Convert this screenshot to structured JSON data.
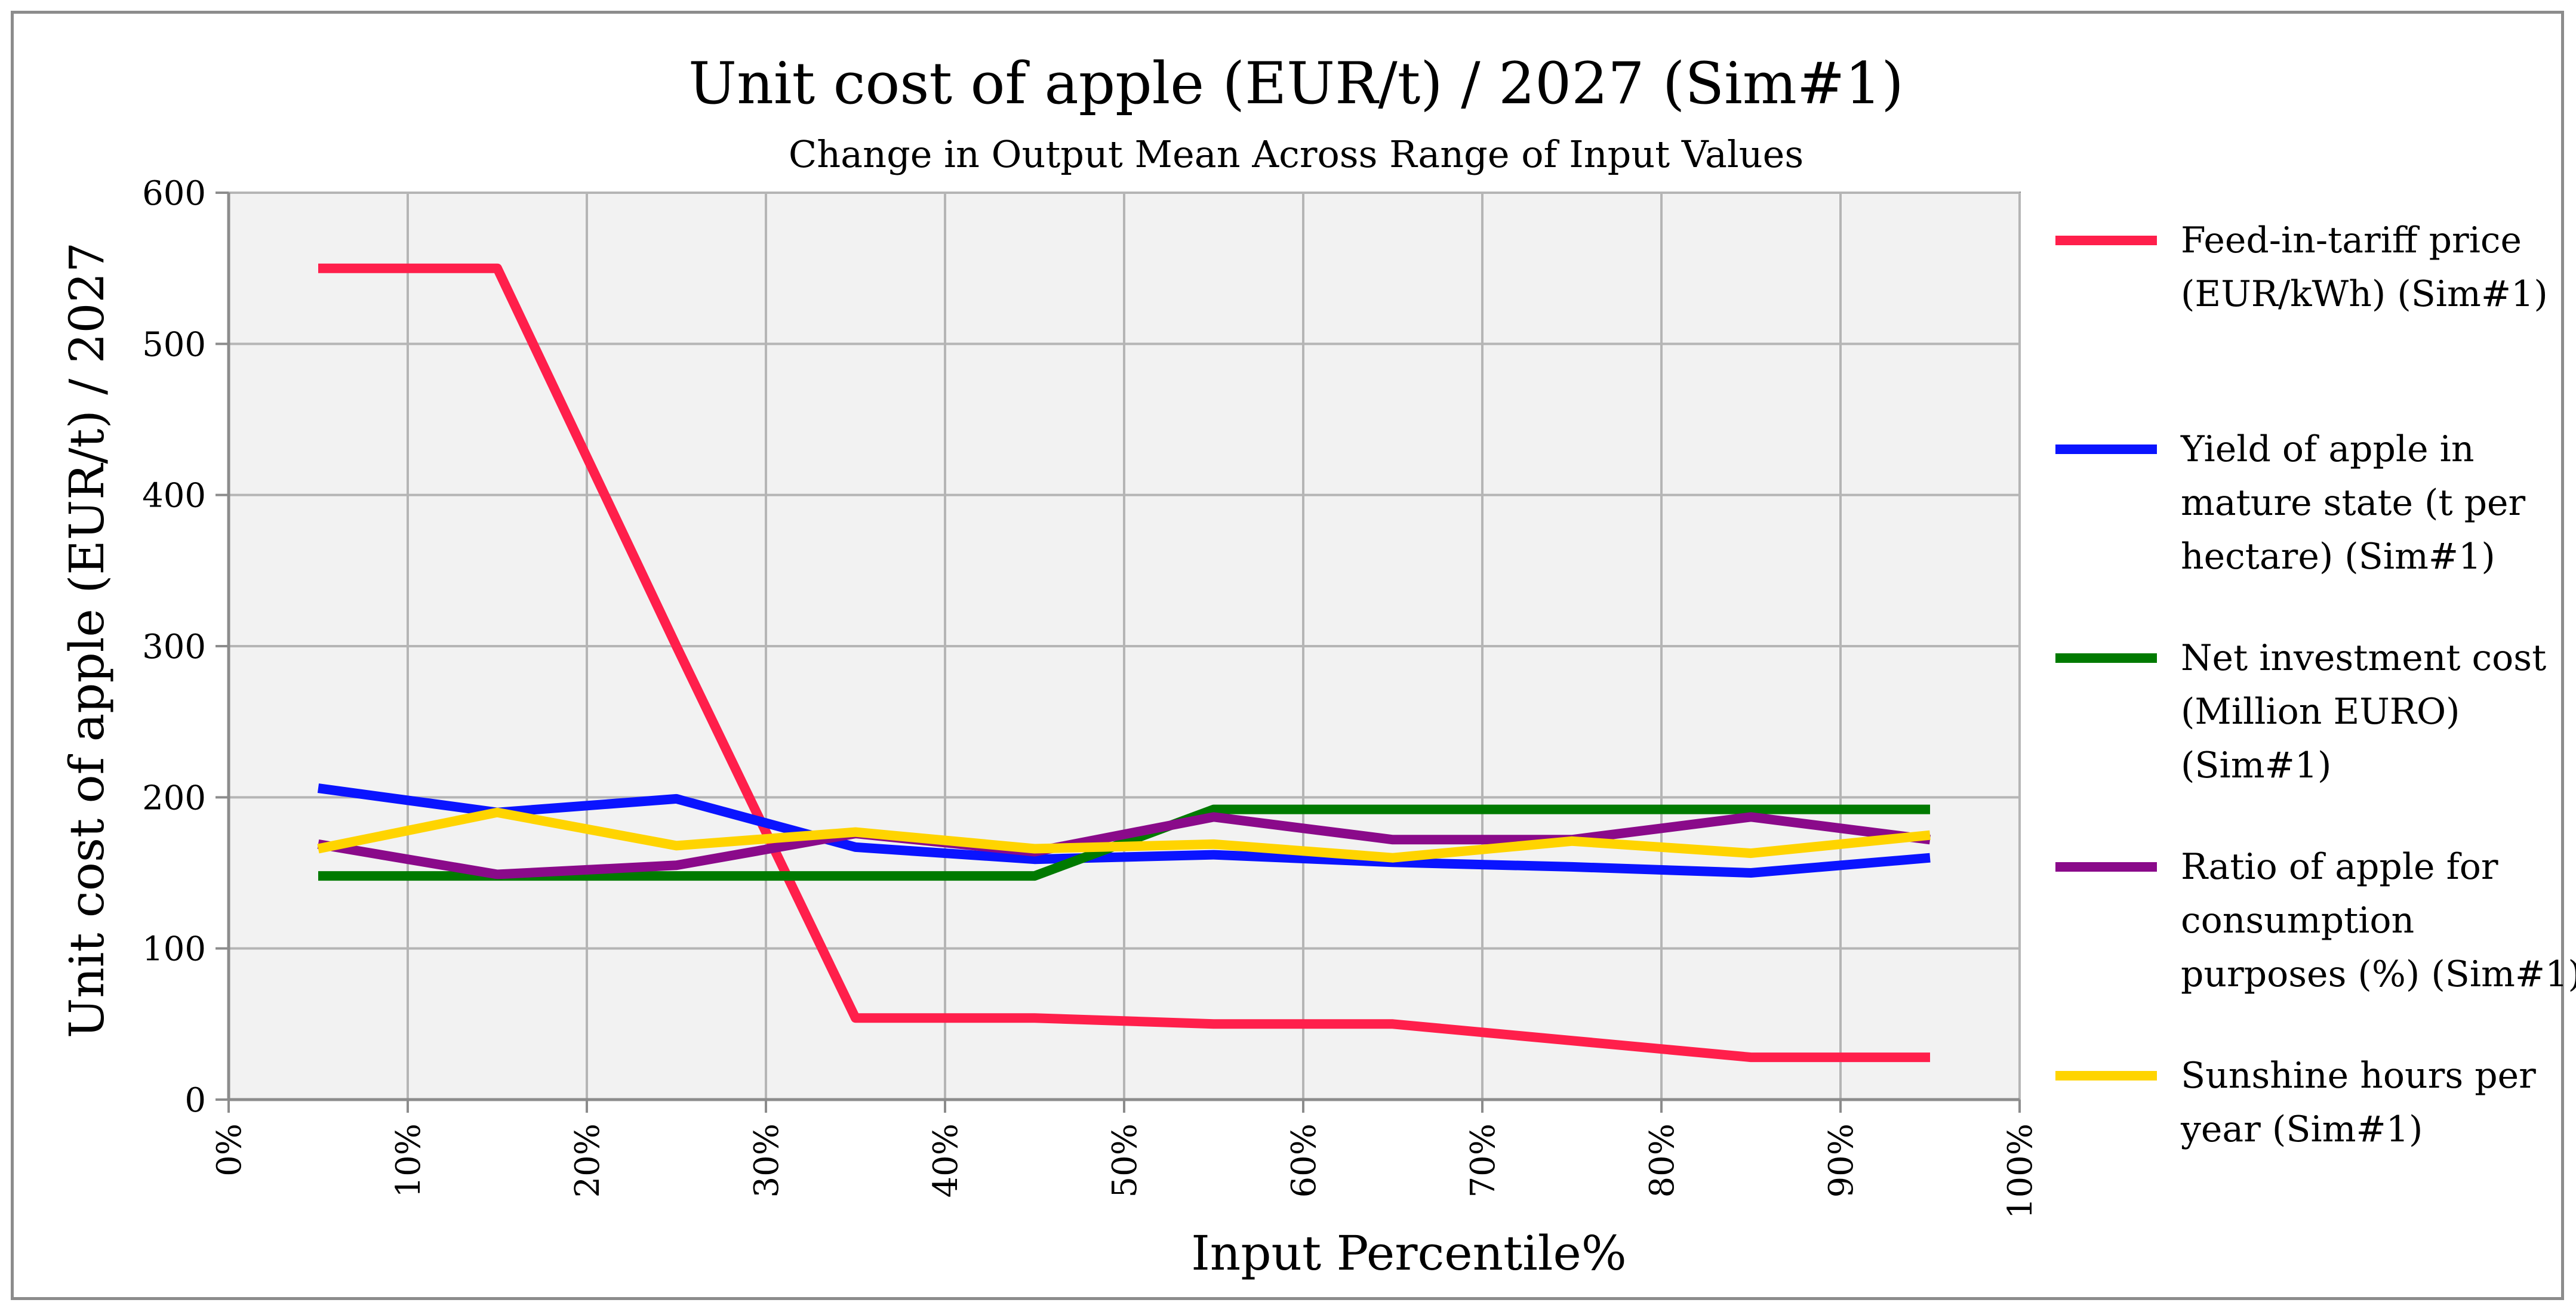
{
  "chart_data": {
    "type": "line",
    "title": "Unit cost of apple (EUR/t) / 2027 (Sim#1)",
    "subtitle": "Change in Output Mean Across Range of Input Values",
    "xlabel": "Input Percentile%",
    "ylabel": "Unit cost of apple (EUR/t) / 2027",
    "xlim": [
      0,
      100
    ],
    "ylim": [
      0,
      600
    ],
    "grid": true,
    "legend_position": "right",
    "x_ticks": [
      0,
      10,
      20,
      30,
      40,
      50,
      60,
      70,
      80,
      90,
      100
    ],
    "x_tick_labels": [
      "0%",
      "10%",
      "20%",
      "30%",
      "40%",
      "50%",
      "60%",
      "70%",
      "80%",
      "90%",
      "100%"
    ],
    "y_ticks": [
      0,
      100,
      200,
      300,
      400,
      500,
      600
    ],
    "y_tick_labels": [
      "0",
      "100",
      "200",
      "300",
      "400",
      "500",
      "600"
    ],
    "x": [
      5,
      15,
      25,
      35,
      45,
      55,
      65,
      75,
      85,
      95
    ],
    "series": [
      {
        "name": "Feed-in-tariff price (EUR/kWh) (Sim#1)",
        "legend_lines": [
          "Feed-in-tariff price",
          "(EUR/kWh) (Sim#1)"
        ],
        "color": "#ff1f4b",
        "values": [
          550,
          550,
          300,
          54,
          54,
          50,
          50,
          39,
          28,
          28
        ]
      },
      {
        "name": "Yield of apple in mature state (t per hectare) (Sim#1)",
        "legend_lines": [
          "Yield of apple in",
          "mature state (t per",
          "hectare) (Sim#1)"
        ],
        "color": "#0a14ff",
        "values": [
          206,
          190,
          199,
          167,
          159,
          162,
          157,
          154,
          150,
          160
        ]
      },
      {
        "name": "Net investment cost (Million EURO) (Sim#1)",
        "legend_lines": [
          "Net investment cost",
          "(Million EURO)",
          "(Sim#1)"
        ],
        "color": "#007a00",
        "values": [
          148,
          148,
          148,
          148,
          148,
          192,
          192,
          192,
          192,
          192
        ]
      },
      {
        "name": "Ratio of apple for consumption purposes (%) (Sim#1)",
        "legend_lines": [
          "Ratio of apple for",
          "consumption",
          "purposes (%) (Sim#1)"
        ],
        "color": "#8a0a8a",
        "values": [
          169,
          149,
          155,
          176,
          164,
          187,
          172,
          172,
          187,
          172
        ]
      },
      {
        "name": "Sunshine hours per year (Sim#1)",
        "legend_lines": [
          "Sunshine hours per",
          "year (Sim#1)"
        ],
        "color": "#ffd400",
        "values": [
          166,
          190,
          168,
          177,
          166,
          169,
          160,
          171,
          163,
          175
        ]
      }
    ]
  }
}
